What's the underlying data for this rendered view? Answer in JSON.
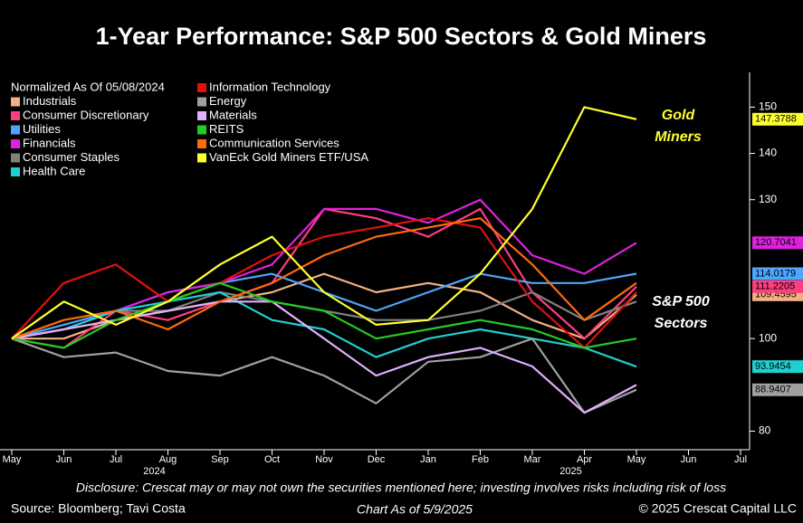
{
  "chart_data": {
    "type": "line",
    "title": "1-Year Performance: S&P 500 Sectors & Gold Miners",
    "legend_title": "Normalized As Of 05/08/2024",
    "categories": [
      "May",
      "Jun",
      "Jul",
      "Aug",
      "Sep",
      "Oct",
      "Nov",
      "Dec",
      "Jan",
      "Feb",
      "Mar",
      "Apr",
      "May",
      "Jun",
      "Jul"
    ],
    "year_labels": [
      {
        "index": 3,
        "label": "2024"
      },
      {
        "index": 11,
        "label": "2025"
      }
    ],
    "ylim": [
      76,
      157.5
    ],
    "yticks": [
      80,
      100,
      130,
      140,
      150
    ],
    "y_axis_side": "right",
    "series": [
      {
        "name": "Industrials",
        "color": "#f4b183",
        "end_label": true,
        "values": [
          100,
          100,
          104,
          106,
          108,
          110,
          114,
          110,
          112,
          110,
          104,
          100,
          109.4595,
          null,
          null
        ]
      },
      {
        "name": "Consumer Discretionary",
        "color": "#ff3d7f",
        "end_label": true,
        "values": [
          100,
          98,
          106,
          104,
          108,
          112,
          128,
          126,
          122,
          128,
          110,
          100,
          111.2205,
          null,
          null
        ]
      },
      {
        "name": "Utilities",
        "color": "#4da6ff",
        "end_label": true,
        "values": [
          100,
          103,
          106,
          110,
          112,
          114,
          110,
          106,
          110,
          114,
          112,
          112,
          114.0179,
          null,
          null
        ]
      },
      {
        "name": "Financials",
        "color": "#e020e0",
        "end_label": true,
        "values": [
          100,
          102,
          106,
          110,
          112,
          116,
          128,
          128,
          125,
          130,
          118,
          114,
          120.7041,
          null,
          null
        ]
      },
      {
        "name": "Consumer Staples",
        "color": "#808080",
        "end_label": false,
        "values": [
          100,
          102,
          106,
          106,
          110,
          108,
          106,
          104,
          104,
          106,
          110,
          104,
          108,
          null,
          null
        ]
      },
      {
        "name": "Health Care",
        "color": "#20d0d0",
        "end_label": true,
        "values": [
          100,
          102,
          106,
          108,
          110,
          104,
          102,
          96,
          100,
          102,
          100,
          98,
          93.9454,
          null,
          null
        ]
      },
      {
        "name": "Information Technology",
        "color": "#e01010",
        "end_label": false,
        "values": [
          100,
          112,
          116,
          108,
          112,
          118,
          122,
          124,
          126,
          124,
          108,
          98,
          110,
          null,
          null
        ]
      },
      {
        "name": "Energy",
        "color": "#a0a0a0",
        "end_label": true,
        "values": [
          100,
          96,
          97,
          93,
          92,
          96,
          92,
          86,
          95,
          96,
          100,
          84,
          88.9407,
          null,
          null
        ]
      },
      {
        "name": "Materials",
        "color": "#e0b0ff",
        "end_label": false,
        "values": [
          100,
          102,
          104,
          106,
          108,
          108,
          100,
          92,
          96,
          98,
          94,
          84,
          90,
          null,
          null
        ]
      },
      {
        "name": "REITS",
        "color": "#22cc22",
        "end_label": false,
        "values": [
          100,
          98,
          104,
          108,
          112,
          108,
          106,
          100,
          102,
          104,
          102,
          98,
          100,
          null,
          null
        ]
      },
      {
        "name": "Communication Services",
        "color": "#ff6a10",
        "end_label": false,
        "values": [
          100,
          104,
          106,
          102,
          108,
          112,
          118,
          122,
          124,
          126,
          116,
          104,
          112,
          null,
          null
        ]
      },
      {
        "name": "VanEck Gold Miners ETF/USA",
        "color": "#ffff30",
        "end_label": true,
        "values": [
          100,
          108,
          103,
          108,
          116,
          122,
          110,
          103,
          104,
          114,
          128,
          150,
          147.3788,
          null,
          null
        ]
      }
    ],
    "annotations": [
      {
        "text": "Gold",
        "color": "#ffff30"
      },
      {
        "text": "Miners",
        "color": "#ffff30"
      },
      {
        "text": "S&P 500",
        "color": "#ffffff"
      },
      {
        "text": "Sectors",
        "color": "#ffffff"
      }
    ],
    "disclosure": "Disclosure: Crescat may or may not own the securities mentioned here; investing involves risks including risk of loss",
    "source": "Source: Bloomberg; Tavi Costa",
    "as_of": "Chart As of 5/9/2025",
    "copyright": "© 2025 Crescat Capital LLC"
  }
}
